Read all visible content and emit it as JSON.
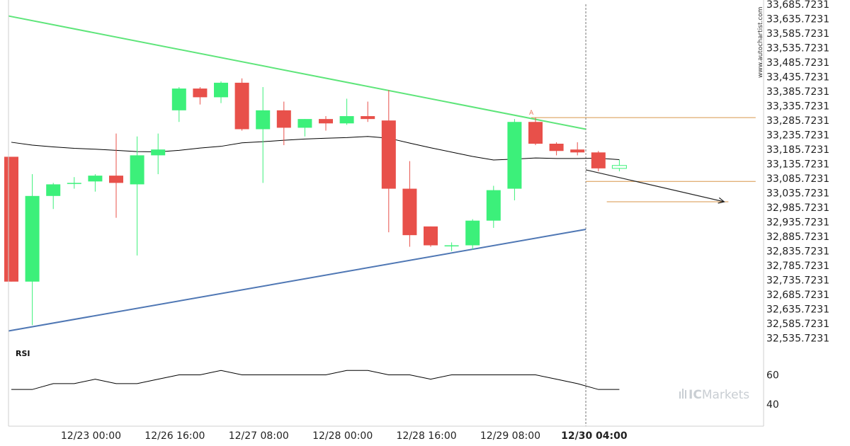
{
  "watermark": "www.autochartist.com",
  "brand": {
    "prefix": "IC",
    "name": "Markets",
    "bar_color": "#c9ced3"
  },
  "colors": {
    "bull": "#3cf07a",
    "bear": "#e8504a",
    "resistance": "#5ee57a",
    "support": "#4f77b4",
    "level": "#d8964a",
    "ma": "#000000",
    "projection": "#222222"
  },
  "chart_data": {
    "type": "candlestick",
    "ylim": [
      32510,
      33700
    ],
    "y_ticks": [
      "33,685.7231",
      "33,635.7231",
      "33,585.7231",
      "33,535.7231",
      "33,485.7231",
      "33,435.7231",
      "33,385.7231",
      "33,335.7231",
      "33,285.7231",
      "33,235.7231",
      "33,185.7231",
      "33,135.7231",
      "33,085.7231",
      "33,035.7231",
      "32,985.7231",
      "32,935.7231",
      "32,885.7231",
      "32,835.7231",
      "32,785.7231",
      "32,735.7231",
      "32,685.7231",
      "32,635.7231",
      "32,585.7231",
      "32,535.7231"
    ],
    "y_tick_values": [
      33685.7231,
      33635.7231,
      33585.7231,
      33535.7231,
      33485.7231,
      33435.7231,
      33385.7231,
      33335.7231,
      33285.7231,
      33235.7231,
      33185.7231,
      33135.7231,
      33085.7231,
      33035.7231,
      32985.7231,
      32935.7231,
      32885.7231,
      32835.7231,
      32785.7231,
      32735.7231,
      32685.7231,
      32635.7231,
      32585.7231,
      32535.7231
    ],
    "x_labels": [
      {
        "text": "12/23 00:00",
        "index": 3.8,
        "bold": false
      },
      {
        "text": "12/26 16:00",
        "index": 7.8,
        "bold": false
      },
      {
        "text": "12/27 08:00",
        "index": 11.8,
        "bold": false
      },
      {
        "text": "12/28 00:00",
        "index": 15.8,
        "bold": false
      },
      {
        "text": "12/28 16:00",
        "index": 19.8,
        "bold": false
      },
      {
        "text": "12/29 08:00",
        "index": 23.8,
        "bold": false
      },
      {
        "text": "12/30 04:00",
        "index": 27.8,
        "bold": true
      }
    ],
    "candles": [
      {
        "o": 33160,
        "h": 33160,
        "l": 32730,
        "c": 32730
      },
      {
        "o": 32730,
        "h": 33100,
        "l": 32580,
        "c": 33025
      },
      {
        "o": 33025,
        "h": 33070,
        "l": 32980,
        "c": 33065
      },
      {
        "o": 33070,
        "h": 33090,
        "l": 33050,
        "c": 33070
      },
      {
        "o": 33075,
        "h": 33100,
        "l": 33040,
        "c": 33095
      },
      {
        "o": 33095,
        "h": 33240,
        "l": 32950,
        "c": 33070
      },
      {
        "o": 33065,
        "h": 33230,
        "l": 32820,
        "c": 33165
      },
      {
        "o": 33165,
        "h": 33240,
        "l": 33100,
        "c": 33185
      },
      {
        "o": 33320,
        "h": 33400,
        "l": 33280,
        "c": 33395
      },
      {
        "o": 33395,
        "h": 33400,
        "l": 33340,
        "c": 33365
      },
      {
        "o": 33365,
        "h": 33420,
        "l": 33345,
        "c": 33415
      },
      {
        "o": 33415,
        "h": 33430,
        "l": 33250,
        "c": 33255
      },
      {
        "o": 33255,
        "h": 33400,
        "l": 33070,
        "c": 33320
      },
      {
        "o": 33320,
        "h": 33350,
        "l": 33200,
        "c": 33260
      },
      {
        "o": 33260,
        "h": 33290,
        "l": 33230,
        "c": 33290
      },
      {
        "o": 33290,
        "h": 33300,
        "l": 33250,
        "c": 33275
      },
      {
        "o": 33275,
        "h": 33360,
        "l": 33270,
        "c": 33300
      },
      {
        "o": 33300,
        "h": 33350,
        "l": 33280,
        "c": 33290
      },
      {
        "o": 33285,
        "h": 33390,
        "l": 32900,
        "c": 33050
      },
      {
        "o": 33050,
        "h": 33145,
        "l": 32850,
        "c": 32890
      },
      {
        "o": 32920,
        "h": 32920,
        "l": 32850,
        "c": 32855
      },
      {
        "o": 32855,
        "h": 32865,
        "l": 32835,
        "c": 32855
      },
      {
        "o": 32855,
        "h": 32945,
        "l": 32840,
        "c": 32940
      },
      {
        "o": 32940,
        "h": 33060,
        "l": 32915,
        "c": 33045
      },
      {
        "o": 33050,
        "h": 33290,
        "l": 33010,
        "c": 33280
      },
      {
        "o": 33280,
        "h": 33295,
        "l": 33200,
        "c": 33205
      },
      {
        "o": 33205,
        "h": 33210,
        "l": 33165,
        "c": 33180
      },
      {
        "o": 33185,
        "h": 33210,
        "l": 33165,
        "c": 33175
      },
      {
        "o": 33175,
        "h": 33180,
        "l": 33110,
        "c": 33120
      },
      {
        "o": 33120,
        "h": 33150,
        "l": 33110,
        "c": 33130
      }
    ],
    "ma": [
      33210,
      33200,
      33194,
      33189,
      33186,
      33182,
      33178,
      33177,
      33182,
      33190,
      33196,
      33208,
      33212,
      33217,
      33221,
      33224,
      33226,
      33230,
      33224,
      33207,
      33191,
      33176,
      33161,
      33149,
      33152,
      33156,
      33154,
      33154,
      33155,
      33150
    ],
    "resistance_line": {
      "from": [
        0,
        33645
      ],
      "to": [
        27.4,
        33255
      ]
    },
    "support_line": {
      "from": [
        0,
        32560
      ],
      "to": [
        27.4,
        32910
      ]
    },
    "pattern_level_top": {
      "value": 33295,
      "from": 24.8,
      "to": 35.5
    },
    "pattern_level_mid": {
      "value": 33075,
      "from": 27.4,
      "to": 35.5
    },
    "pattern_level_target": {
      "value": 33005,
      "from": 28.4,
      "to": 34.2
    },
    "projection_arrow": {
      "from": [
        27.4,
        33115
      ],
      "to": [
        34.0,
        33005
      ]
    },
    "pattern_label": {
      "text": "A",
      "index": 24.8,
      "value": 33305
    },
    "current_marker_index": 27.4,
    "rsi": {
      "title": "RSI",
      "ticks": [
        60,
        40
      ],
      "ylim": [
        25,
        80
      ],
      "values": [
        50,
        50,
        54,
        54,
        57,
        54,
        54,
        57,
        60,
        60,
        63,
        60,
        60,
        60,
        60,
        60,
        63,
        63,
        60,
        60,
        57,
        60,
        60,
        60,
        60,
        60,
        57,
        54,
        50,
        50
      ]
    }
  }
}
